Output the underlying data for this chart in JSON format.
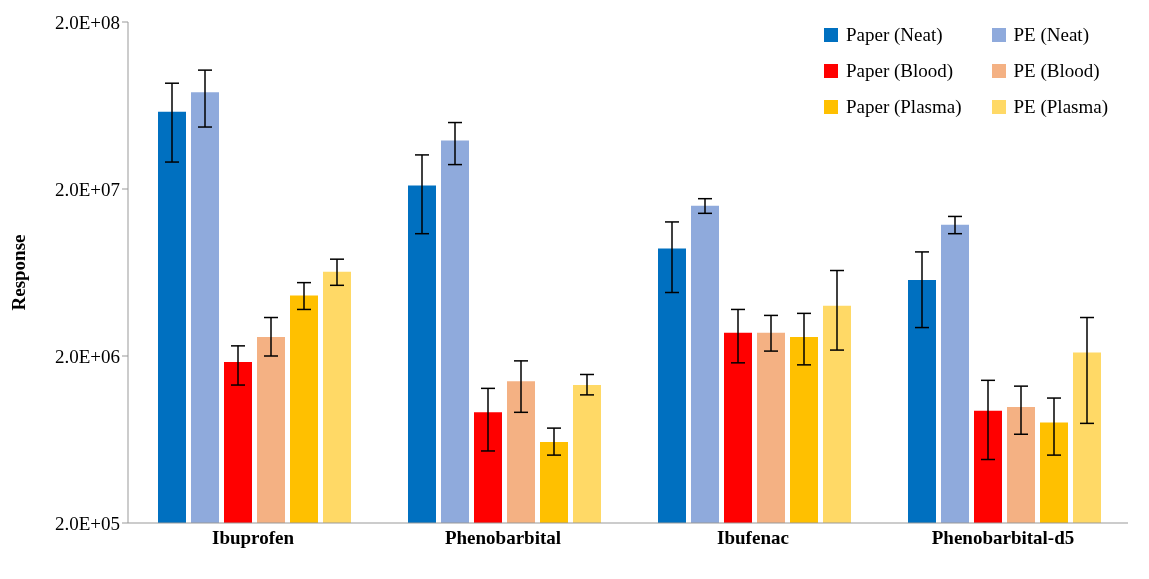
{
  "chart_data": {
    "type": "bar",
    "ylabel": "Response",
    "log": true,
    "legend": "top right",
    "categories": [
      "Ibuprofen",
      "Phenobarbital",
      "Ibufenac",
      "Phenobarbital-d5"
    ],
    "ylim": [
      200000,
      200000000
    ],
    "yticks": [
      {
        "value": 200000,
        "label": "2.0E+05"
      },
      {
        "value": 2000000,
        "label": "2.0E+06"
      },
      {
        "value": 20000000,
        "label": "2.0E+07"
      },
      {
        "value": 200000000,
        "label": "2.0E+08"
      }
    ],
    "series": [
      {
        "name": "Paper (Neat)",
        "color": "#0070c0",
        "values": [
          58000000,
          21000000,
          8800000,
          5700000
        ],
        "errors": [
          [
            29000000,
            86000000
          ],
          [
            10800000,
            32000000
          ],
          [
            4800000,
            12700000
          ],
          [
            2960000,
            8400000
          ]
        ]
      },
      {
        "name": "PE (Neat)",
        "color": "#8faadc",
        "values": [
          76000000,
          39000000,
          15900000,
          12200000
        ],
        "errors": [
          [
            47000000,
            103000000
          ],
          [
            28000000,
            50000000
          ],
          [
            14300000,
            17500000
          ],
          [
            10800000,
            13700000
          ]
        ]
      },
      {
        "name": "Paper (Blood)",
        "color": "#ff0000",
        "values": [
          1840000,
          920000,
          2760000,
          940000
        ],
        "errors": [
          [
            1340000,
            2300000
          ],
          [
            540000,
            1280000
          ],
          [
            1820000,
            3800000
          ],
          [
            480000,
            1430000
          ]
        ]
      },
      {
        "name": "PE (Blood)",
        "color": "#f4b183",
        "values": [
          2600000,
          1410000,
          2760000,
          990000
        ],
        "errors": [
          [
            2000000,
            3400000
          ],
          [
            920000,
            1870000
          ],
          [
            2140000,
            3500000
          ],
          [
            680000,
            1320000
          ]
        ]
      },
      {
        "name": "Paper (Plasma)",
        "color": "#ffc000",
        "values": [
          4600000,
          610000,
          2600000,
          800000
        ],
        "errors": [
          [
            3800000,
            5500000
          ],
          [
            510000,
            740000
          ],
          [
            1770000,
            3600000
          ],
          [
            510000,
            1120000
          ]
        ]
      },
      {
        "name": "PE (Plasma)",
        "color": "#ffd966",
        "values": [
          6400000,
          1340000,
          4000000,
          2100000
        ],
        "errors": [
          [
            5300000,
            7600000
          ],
          [
            1170000,
            1550000
          ],
          [
            2170000,
            6500000
          ],
          [
            790000,
            3400000
          ]
        ]
      }
    ]
  }
}
